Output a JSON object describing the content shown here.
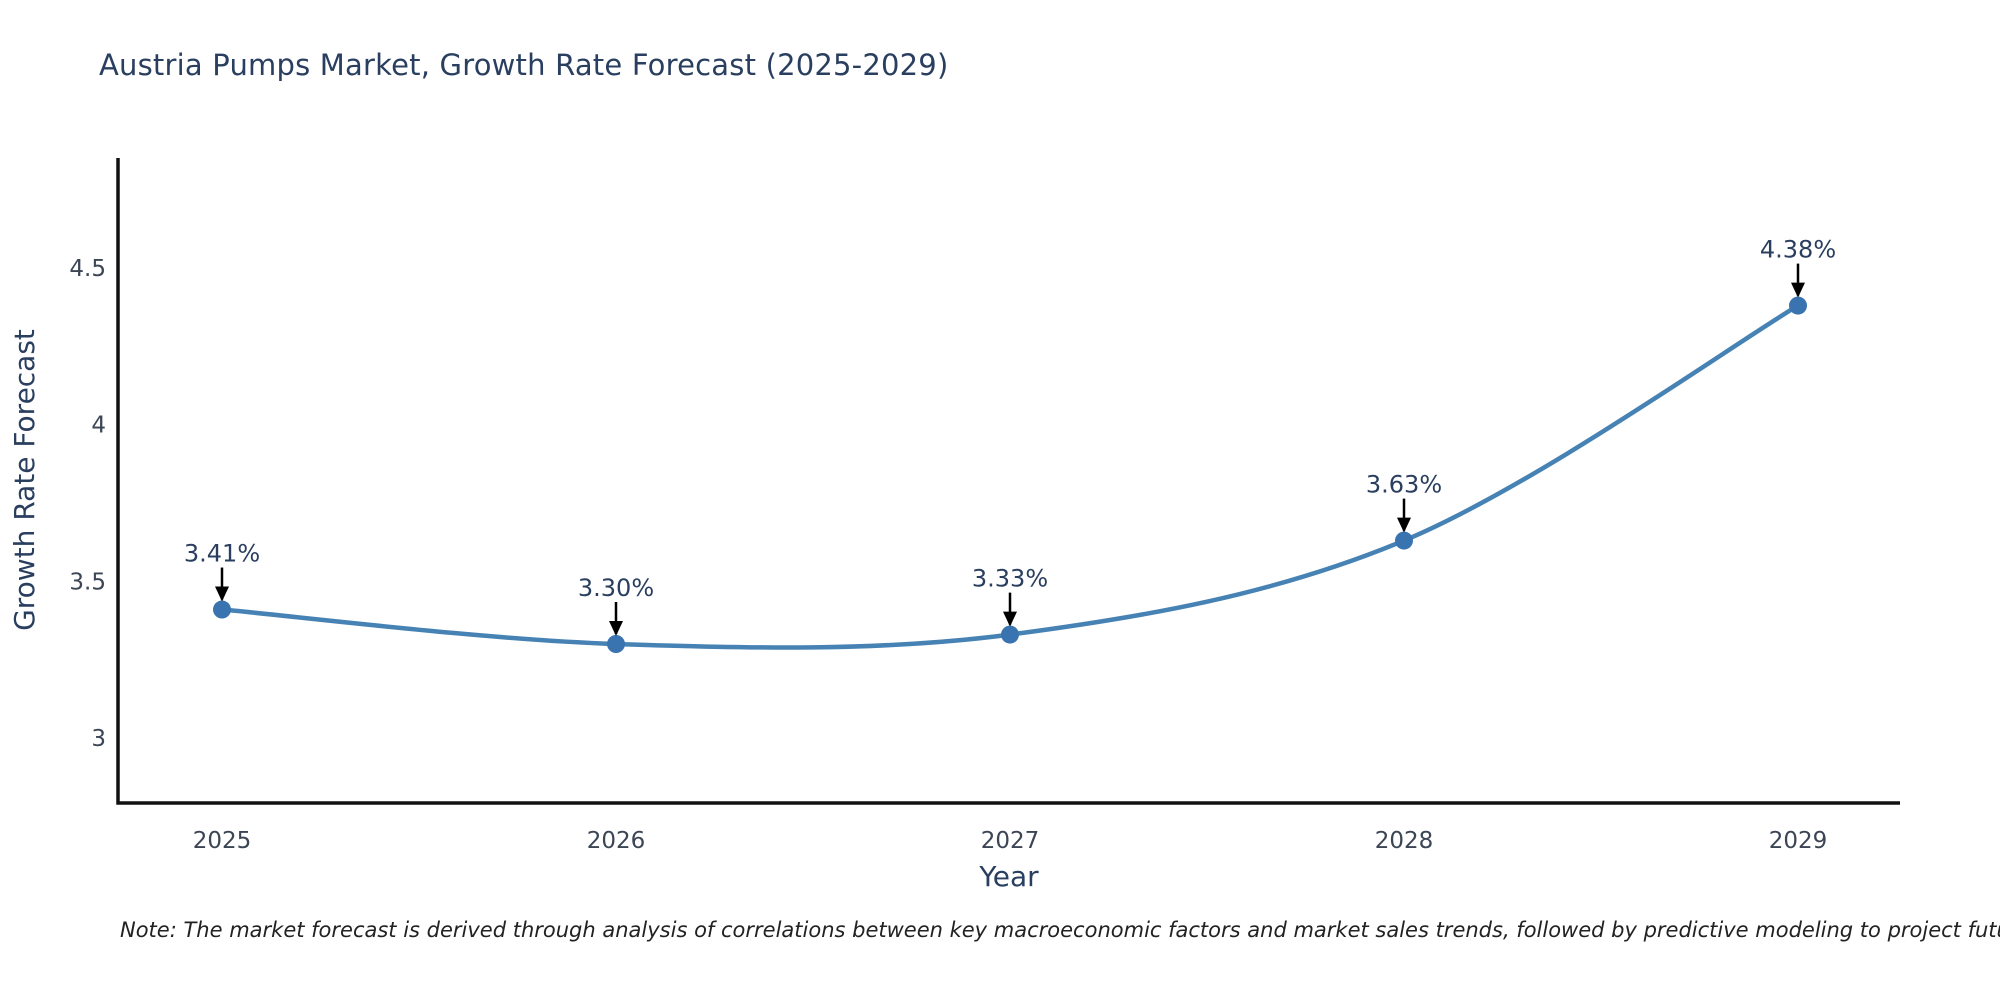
{
  "page": {
    "title": "Austria Pumps Market, Growth Rate Forecast (2025-2029)",
    "note": "Note: The market forecast is derived through analysis of correlations between key macroeconomic factors and market sales trends, followed by predictive modeling to project future sales"
  },
  "chart_data": {
    "type": "line",
    "line_shape": "spline",
    "title": "Austria Pumps Market, Growth Rate Forecast (2025-2029)",
    "xlabel": "Year",
    "ylabel": "Growth Rate Forecast",
    "categories": [
      "2025",
      "2026",
      "2027",
      "2028",
      "2029"
    ],
    "x": [
      2025,
      2026,
      2027,
      2028,
      2029
    ],
    "values": [
      3.41,
      3.3,
      3.33,
      3.63,
      4.38
    ],
    "point_labels": [
      "3.41%",
      "3.30%",
      "3.33%",
      "3.63%",
      "4.38%"
    ],
    "yticks": [
      3,
      3.5,
      4,
      4.5
    ],
    "ylim": [
      2.79,
      4.86
    ],
    "grid": false,
    "legend": false,
    "annotations": "black arrow from each label pointing down to its data point",
    "colors": {
      "line": "#4682b4",
      "marker": "#3a74b0",
      "arrow": "#000000",
      "axis": "#111111",
      "title_text": "#2a3f5f",
      "tick_text": "#3b4554",
      "note_text": "#222222",
      "background": "#ffffff"
    }
  }
}
